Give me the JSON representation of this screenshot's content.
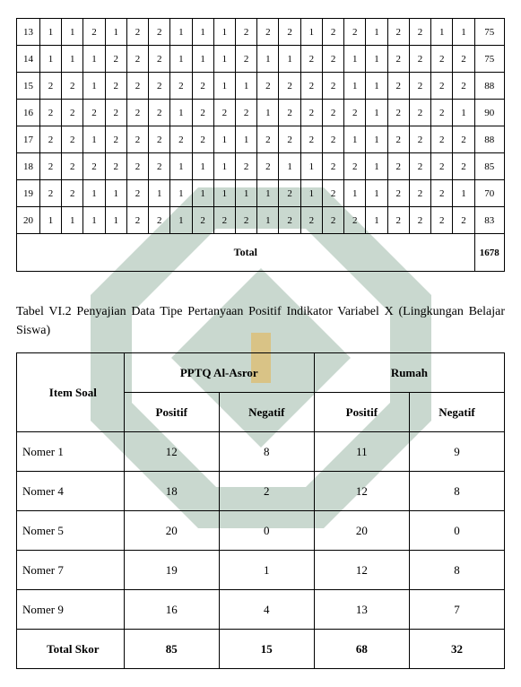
{
  "top": {
    "rows": [
      {
        "n": 13,
        "v": [
          1,
          1,
          2,
          1,
          2,
          2,
          1,
          1,
          1,
          2,
          2,
          2,
          1,
          2,
          2,
          1,
          2,
          2,
          1,
          1
        ],
        "s": 75
      },
      {
        "n": 14,
        "v": [
          1,
          1,
          1,
          2,
          2,
          2,
          1,
          1,
          1,
          2,
          1,
          1,
          2,
          2,
          1,
          1,
          2,
          2,
          2,
          2
        ],
        "s": 75
      },
      {
        "n": 15,
        "v": [
          2,
          2,
          1,
          2,
          2,
          2,
          2,
          2,
          1,
          1,
          2,
          2,
          2,
          2,
          1,
          1,
          2,
          2,
          2,
          2
        ],
        "s": 88
      },
      {
        "n": 16,
        "v": [
          2,
          2,
          2,
          2,
          2,
          2,
          1,
          2,
          2,
          2,
          1,
          2,
          2,
          2,
          2,
          1,
          2,
          2,
          2,
          1
        ],
        "s": 90
      },
      {
        "n": 17,
        "v": [
          2,
          2,
          1,
          2,
          2,
          2,
          2,
          2,
          1,
          1,
          2,
          2,
          2,
          2,
          1,
          1,
          2,
          2,
          2,
          2
        ],
        "s": 88
      },
      {
        "n": 18,
        "v": [
          2,
          2,
          2,
          2,
          2,
          2,
          1,
          1,
          1,
          2,
          2,
          1,
          1,
          2,
          2,
          1,
          2,
          2,
          2,
          2
        ],
        "s": 85
      },
      {
        "n": 19,
        "v": [
          2,
          2,
          1,
          1,
          2,
          1,
          1,
          1,
          1,
          1,
          1,
          2,
          1,
          2,
          1,
          1,
          2,
          2,
          2,
          1
        ],
        "s": 70
      },
      {
        "n": 20,
        "v": [
          1,
          1,
          1,
          1,
          2,
          2,
          1,
          2,
          2,
          2,
          1,
          2,
          2,
          2,
          2,
          1,
          2,
          2,
          2,
          2
        ],
        "s": 83
      }
    ],
    "total_label": "Total",
    "total_value": "1678"
  },
  "caption": "Tabel VI.2 Penyajian Data Tipe Pertanyaan Positif Indikator Variabel X (Lingkungan Belajar Siswa)",
  "sum": {
    "header": {
      "item": "Item Soal",
      "g1": "PPTQ Al-Asror",
      "g2": "Rumah",
      "pos": "Positif",
      "neg": "Negatif"
    },
    "rows": [
      {
        "label": "Nomer 1",
        "a": 12,
        "b": 8,
        "c": 11,
        "d": 9
      },
      {
        "label": "Nomer 4",
        "a": 18,
        "b": 2,
        "c": 12,
        "d": 8
      },
      {
        "label": "Nomer 5",
        "a": 20,
        "b": 0,
        "c": 20,
        "d": 0
      },
      {
        "label": "Nomer 7",
        "a": 19,
        "b": 1,
        "c": 12,
        "d": 8
      },
      {
        "label": "Nomer 9",
        "a": 16,
        "b": 4,
        "c": 13,
        "d": 7
      }
    ],
    "total": {
      "label": "Total Skor",
      "a": 85,
      "b": 15,
      "c": 68,
      "d": 32
    }
  }
}
